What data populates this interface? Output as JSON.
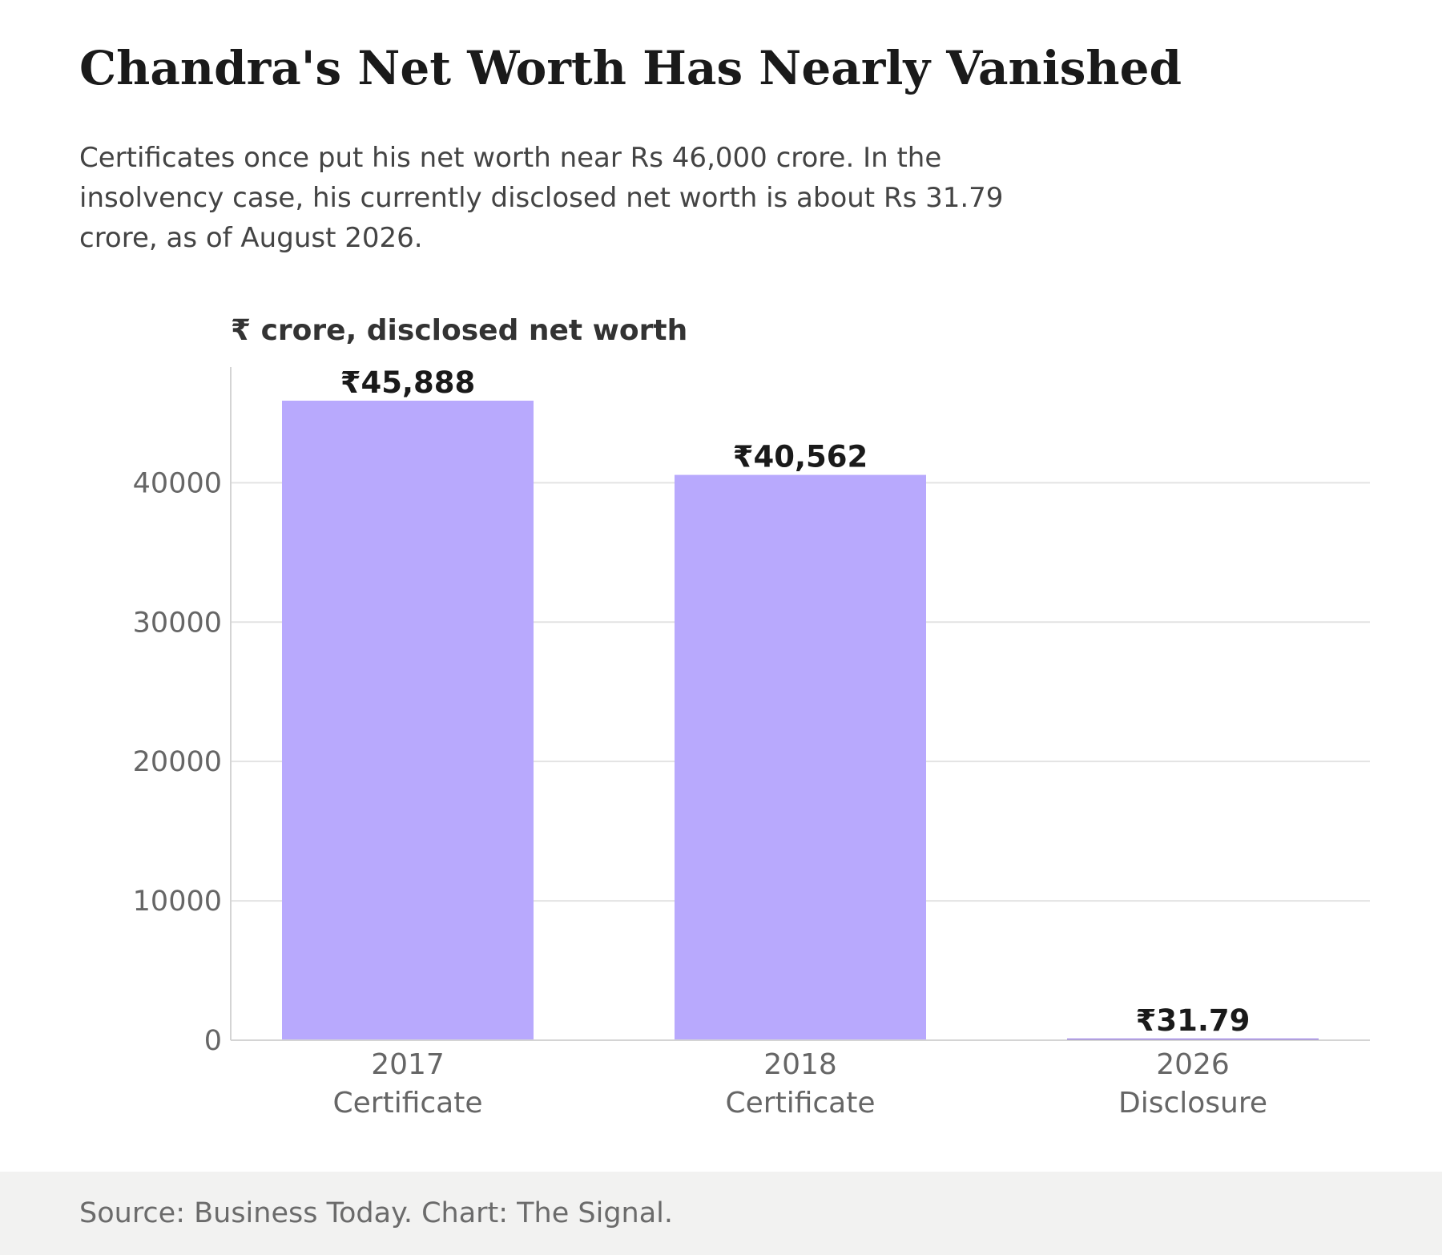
{
  "header": {
    "title": "Chandra's Net Worth Has Nearly Vanished",
    "subtitle": "Certificates once put his net worth near Rs 46,000 crore. In the insolvency case, his currently disclosed net worth is about Rs 31.79 crore, as of August 2026."
  },
  "footer": {
    "source": "Source: Business Today. Chart: The Signal."
  },
  "colors": {
    "bar": "#b8a9fd",
    "bar_small": "#7b55e0",
    "grid": "#e3e3e3",
    "axis": "#d4d4d4",
    "tick_text": "#666666",
    "label_text": "#1a1a1a",
    "ylabel_text": "#333333"
  },
  "chart_data": {
    "type": "bar",
    "ylabel": "₹ crore, disclosed net worth",
    "categories": [
      [
        "2017",
        "Certificate"
      ],
      [
        "2018",
        "Certificate"
      ],
      [
        "2026",
        "Disclosure"
      ]
    ],
    "values": [
      45888,
      40562,
      31.79
    ],
    "value_labels": [
      "₹45,888",
      "₹40,562",
      "₹31.79"
    ],
    "yticks": [
      0,
      10000,
      20000,
      30000,
      40000
    ],
    "ylim": [
      0,
      48300
    ],
    "grid": "horizontal",
    "legend": "none"
  }
}
